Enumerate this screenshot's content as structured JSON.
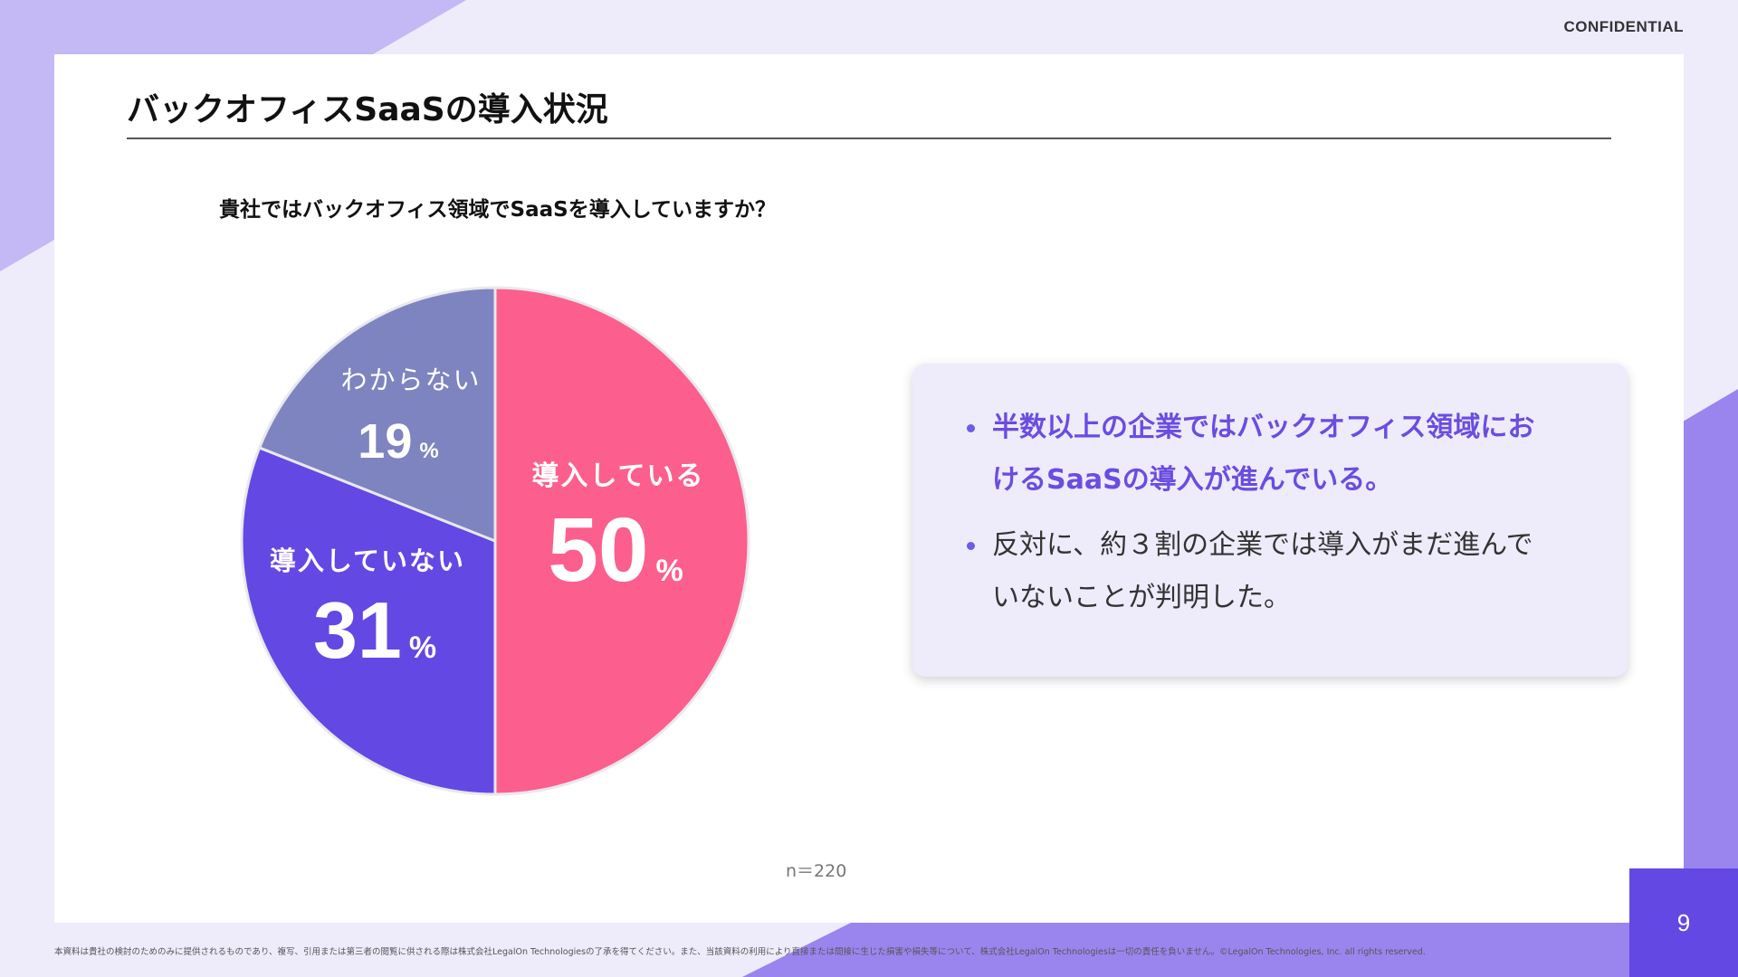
{
  "header": {
    "confidential": "CONFIDENTIAL",
    "title": "バックオフィスSaaSの導入状況"
  },
  "colors": {
    "accent": "#6448e3",
    "background": "#eeebfb",
    "highlight_text": "#6a4de0"
  },
  "chart_data": {
    "type": "pie",
    "title": "貴社ではバックオフィス領域でSaaSを導入していますか？",
    "categories": [
      "導入している",
      "導入していない",
      "わからない"
    ],
    "values": [
      50,
      31,
      19
    ],
    "value_suffix": "%",
    "colors": [
      "#fc5f8d",
      "#6448e3",
      "#7e84c0"
    ],
    "start": "top",
    "direction": "clockwise",
    "note": "n＝220"
  },
  "summary": {
    "items": [
      {
        "text": "半数以上の企業ではバックオフィス領域にお",
        "text2": "けるSaaSの導入が進んでいる。",
        "highlight": true
      },
      {
        "text": "反対に、約３割の企業では導入がまだ進んで",
        "text2": "いないことが判明した。",
        "highlight": false
      }
    ]
  },
  "footer": {
    "page_number": "9",
    "disclaimer": "本資料は貴社の検討のためのみに提供されるものであり、複写、引用または第三者の閲覧に供される際は株式会社LegalOn Technologiesの了承を得てください。また、当該資料の利用により直接または間接に生じた損害や損失等について、株式会社LegalOn Technologiesは一切の責任を負いません。©LegalOn Technologies, Inc. all rights reserved."
  }
}
